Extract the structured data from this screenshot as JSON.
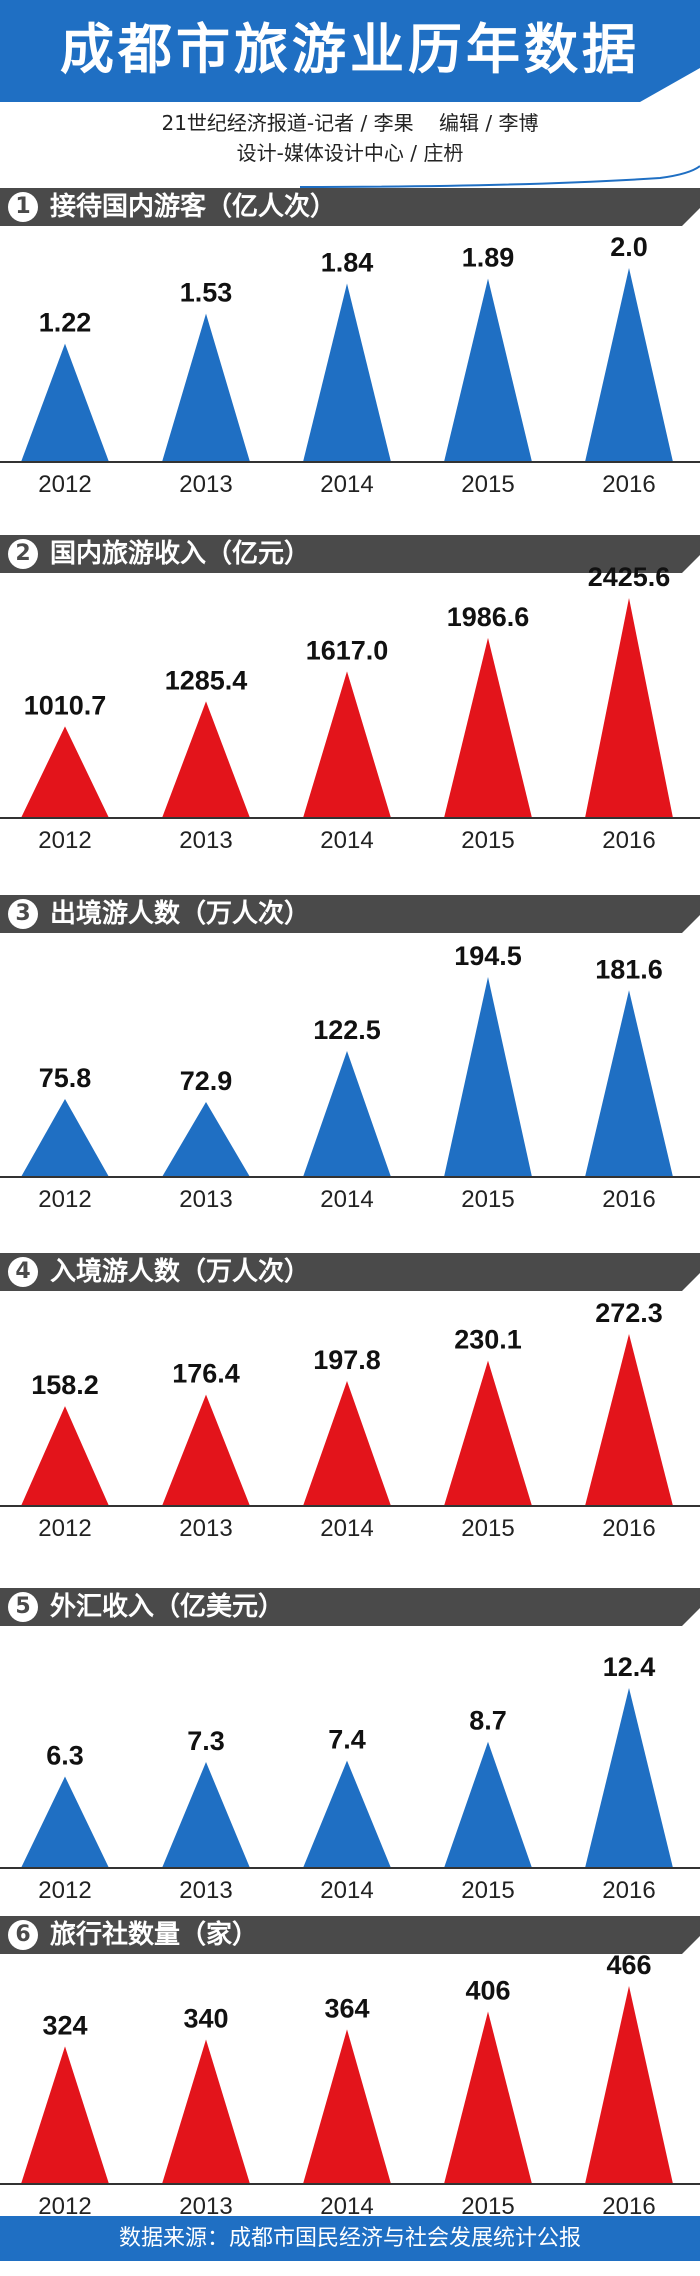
{
  "header": {
    "title": "成都市旅游业历年数据",
    "credits_line1": "21世纪经济报道-记者 / 李果    编辑 / 李博",
    "credits_line2": "设计-媒体设计中心 / 庄枬"
  },
  "colors": {
    "blue": "#1f6fc3",
    "red": "#e3141b",
    "section_bar": "#4a4a4a",
    "header": "#1f6fc3"
  },
  "chart_data": [
    {
      "type": "bar",
      "number": "1",
      "title": "接待国内游客（亿人次）",
      "color": "blue",
      "categories": [
        "2012",
        "2013",
        "2014",
        "2015",
        "2016"
      ],
      "values": [
        1.22,
        1.53,
        1.84,
        1.89,
        2.0
      ],
      "labels": [
        "1.22",
        "1.53",
        "1.84",
        "1.89",
        "2.0"
      ]
    },
    {
      "type": "bar",
      "number": "2",
      "title": "国内旅游收入（亿元）",
      "color": "red",
      "categories": [
        "2012",
        "2013",
        "2014",
        "2015",
        "2016"
      ],
      "values": [
        1010.7,
        1285.4,
        1617.0,
        1986.6,
        2425.6
      ],
      "labels": [
        "1010.7",
        "1285.4",
        "1617.0",
        "1986.6",
        "2425.6"
      ]
    },
    {
      "type": "bar",
      "number": "3",
      "title": "出境游人数（万人次）",
      "color": "blue",
      "categories": [
        "2012",
        "2013",
        "2014",
        "2015",
        "2016"
      ],
      "values": [
        75.8,
        72.9,
        122.5,
        194.5,
        181.6
      ],
      "labels": [
        "75.8",
        "72.9",
        "122.5",
        "194.5",
        "181.6"
      ]
    },
    {
      "type": "bar",
      "number": "4",
      "title": "入境游人数（万人次）",
      "color": "red",
      "categories": [
        "2012",
        "2013",
        "2014",
        "2015",
        "2016"
      ],
      "values": [
        158.2,
        176.4,
        197.8,
        230.1,
        272.3
      ],
      "labels": [
        "158.2",
        "176.4",
        "197.8",
        "230.1",
        "272.3"
      ]
    },
    {
      "type": "bar",
      "number": "5",
      "title": "外汇收入（亿美元）",
      "color": "blue",
      "categories": [
        "2012",
        "2013",
        "2014",
        "2015",
        "2016"
      ],
      "values": [
        6.3,
        7.3,
        7.4,
        8.7,
        12.4
      ],
      "labels": [
        "6.3",
        "7.3",
        "7.4",
        "8.7",
        "12.4"
      ]
    },
    {
      "type": "bar",
      "number": "6",
      "title": "旅行社数量（家）",
      "color": "red",
      "categories": [
        "2012",
        "2013",
        "2014",
        "2015",
        "2016"
      ],
      "values": [
        324,
        340,
        364,
        406,
        466
      ],
      "labels": [
        "324",
        "340",
        "364",
        "406",
        "466"
      ]
    }
  ],
  "footer": {
    "source": "数据来源：成都市国民经济与社会发展统计公报"
  }
}
